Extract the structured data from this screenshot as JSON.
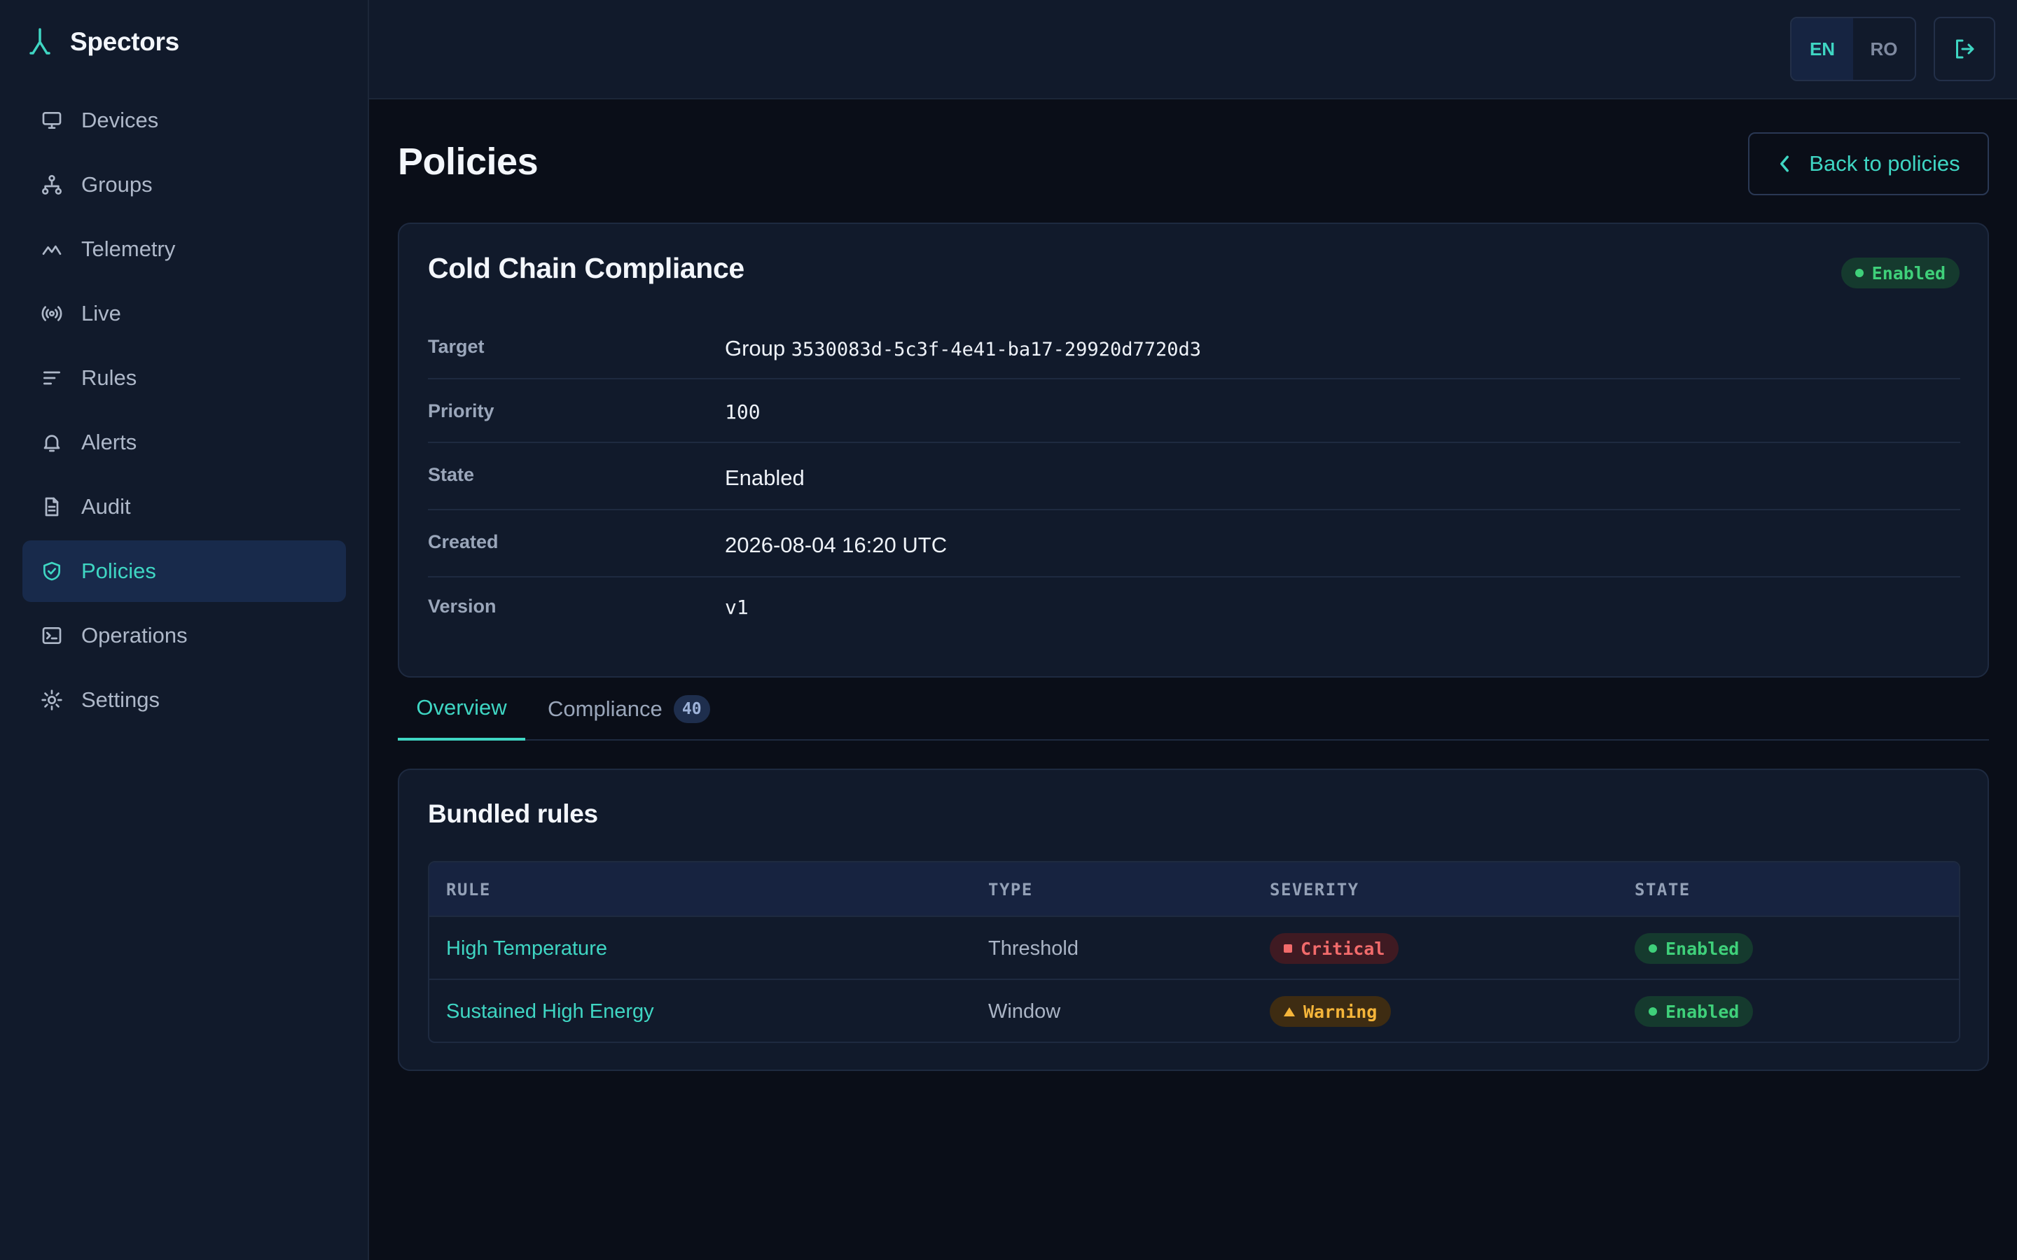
{
  "app": {
    "name": "Spectors"
  },
  "sidebar": {
    "items": [
      {
        "label": "Devices",
        "icon": "monitor-icon"
      },
      {
        "label": "Groups",
        "icon": "hierarchy-icon"
      },
      {
        "label": "Telemetry",
        "icon": "activity-icon"
      },
      {
        "label": "Live",
        "icon": "broadcast-icon"
      },
      {
        "label": "Rules",
        "icon": "list-icon"
      },
      {
        "label": "Alerts",
        "icon": "bell-icon"
      },
      {
        "label": "Audit",
        "icon": "document-icon"
      },
      {
        "label": "Policies",
        "icon": "shield-check-icon",
        "active": true
      },
      {
        "label": "Operations",
        "icon": "terminal-icon"
      },
      {
        "label": "Settings",
        "icon": "sun-gear-icon"
      }
    ]
  },
  "topbar": {
    "languages": [
      "EN",
      "RO"
    ],
    "active_language": "EN",
    "logout_icon": "logout-icon"
  },
  "page": {
    "title": "Policies",
    "back_label": "Back to policies"
  },
  "policy": {
    "name": "Cold Chain Compliance",
    "status": "Enabled",
    "fields": {
      "target_label": "Target",
      "target_prefix": "Group",
      "target_id": "3530083d-5c3f-4e41-ba17-29920d7720d3",
      "priority_label": "Priority",
      "priority_value": "100",
      "state_label": "State",
      "state_value": "Enabled",
      "created_label": "Created",
      "created_value": "2026-08-04 16:20 UTC",
      "version_label": "Version",
      "version_value": "v1"
    }
  },
  "tabs": {
    "overview": "Overview",
    "compliance": "Compliance",
    "compliance_count": "40"
  },
  "bundled_rules": {
    "title": "Bundled rules",
    "columns": [
      "RULE",
      "TYPE",
      "SEVERITY",
      "STATE"
    ],
    "rows": [
      {
        "rule": "High Temperature",
        "type": "Threshold",
        "severity": "Critical",
        "state": "Enabled"
      },
      {
        "rule": "Sustained High Energy",
        "type": "Window",
        "severity": "Warning",
        "state": "Enabled"
      }
    ]
  },
  "colors": {
    "accent": "#3fd6c3",
    "success": "#3fd07a",
    "critical": "#f26b6b",
    "warning": "#f5b53a",
    "background": "#0a0e18",
    "panel": "#111a2b"
  }
}
